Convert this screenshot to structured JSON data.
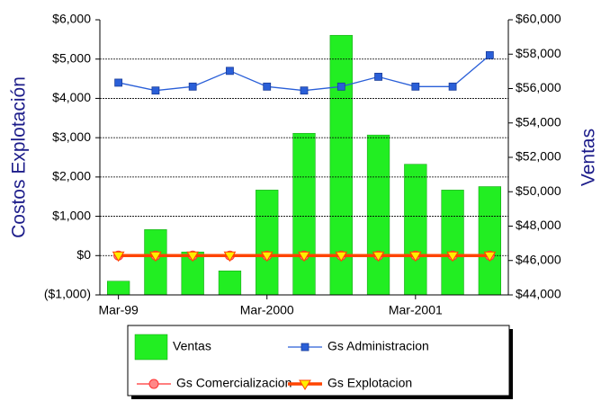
{
  "chart_data": {
    "type": "bar",
    "ylabel": "Costos Explotación",
    "y2label": "Ventas",
    "categories": [
      "Mar-99",
      null,
      null,
      null,
      "Mar-2000",
      null,
      null,
      null,
      "Mar-2001",
      null,
      null
    ],
    "ylim": [
      -1000,
      6000
    ],
    "yticks": [
      {
        "value": -1000,
        "label": "($1,000)"
      },
      {
        "value": 0,
        "label": "$0"
      },
      {
        "value": 1000,
        "label": "$1,000"
      },
      {
        "value": 2000,
        "label": "$2,000"
      },
      {
        "value": 3000,
        "label": "$3,000"
      },
      {
        "value": 4000,
        "label": "$4,000"
      },
      {
        "value": 5000,
        "label": "$5,000"
      },
      {
        "value": 6000,
        "label": "$6,000"
      }
    ],
    "y2lim": [
      44000,
      60000
    ],
    "y2ticks": [
      {
        "value": 44000,
        "label": "$44,000"
      },
      {
        "value": 46000,
        "label": "$46,000"
      },
      {
        "value": 48000,
        "label": "$48,000"
      },
      {
        "value": 50000,
        "label": "$50,000"
      },
      {
        "value": 52000,
        "label": "$52,000"
      },
      {
        "value": 54000,
        "label": "$54,000"
      },
      {
        "value": 56000,
        "label": "$56,000"
      },
      {
        "value": 58000,
        "label": "$58,000"
      },
      {
        "value": 60000,
        "label": "$60,000"
      }
    ],
    "grid": true,
    "series": [
      {
        "name": "Ventas",
        "type": "bar",
        "axis": "y2",
        "color": "#22ee22",
        "values": [
          44800,
          47800,
          46500,
          45400,
          50100,
          53400,
          59100,
          53300,
          51600,
          50100,
          50300
        ]
      },
      {
        "name": "Gs Administracion",
        "type": "line",
        "marker": "square",
        "color": "#2a5fd8",
        "values": [
          4400,
          4200,
          4300,
          4700,
          4300,
          4200,
          4300,
          4550,
          4300,
          4300,
          5100
        ]
      },
      {
        "name": "Gs Comercializacion",
        "type": "line",
        "marker": "circle",
        "color": "#ff3333",
        "values": [
          0,
          0,
          0,
          0,
          0,
          0,
          0,
          0,
          0,
          0,
          0
        ]
      },
      {
        "name": "Gs Explotacion",
        "type": "line",
        "marker": "triangle",
        "color": "#ff4400",
        "values": [
          0,
          0,
          0,
          0,
          0,
          0,
          0,
          0,
          0,
          0,
          0
        ]
      }
    ]
  }
}
